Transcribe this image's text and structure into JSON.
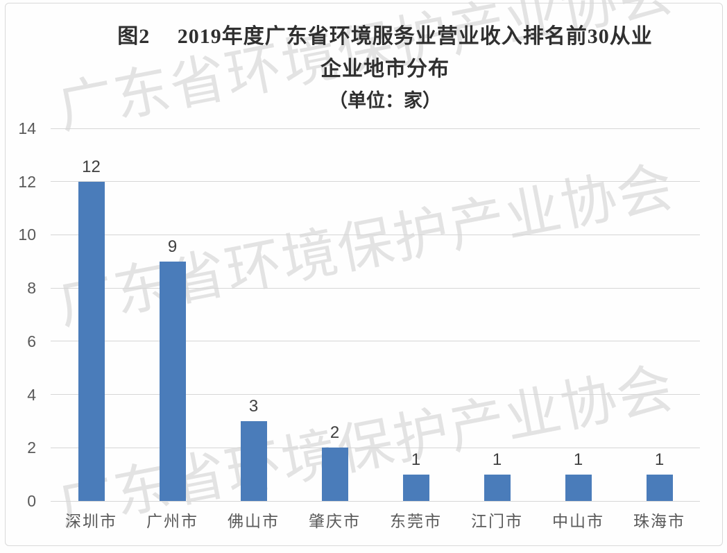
{
  "chart_data": {
    "type": "bar",
    "title_line1": "图2　 2019年度广东省环境服务业营业收入排名前30从业",
    "title_line2": "企业地市分布",
    "title_line3": "（单位：家）",
    "categories": [
      "深圳市",
      "广州市",
      "佛山市",
      "肇庆市",
      "东莞市",
      "江门市",
      "中山市",
      "珠海市"
    ],
    "values": [
      12,
      9,
      3,
      2,
      1,
      1,
      1,
      1
    ],
    "xlabel": "",
    "ylabel": "",
    "ylim": [
      0,
      14
    ],
    "yticks": [
      0,
      2,
      4,
      6,
      8,
      10,
      12,
      14
    ],
    "grid": true,
    "legend": "none",
    "bar_color": "#4a7cba",
    "gridline_color": "#d6d6d6",
    "axis_label_color": "#595959",
    "value_label_color": "#3f3f3f",
    "title_color": "#2f2f2f"
  },
  "watermark": {
    "text": "广东省环境保护产业协会",
    "color": "#e3e3e3"
  }
}
